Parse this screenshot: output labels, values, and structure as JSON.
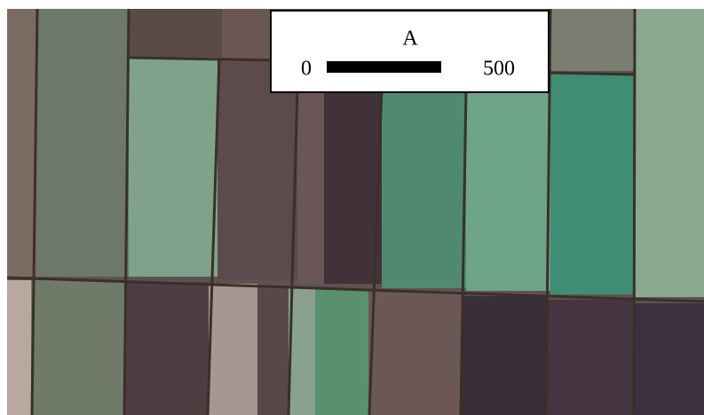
{
  "panel_label": "A",
  "scale_bar": {
    "start": 0,
    "end": 500
  }
}
